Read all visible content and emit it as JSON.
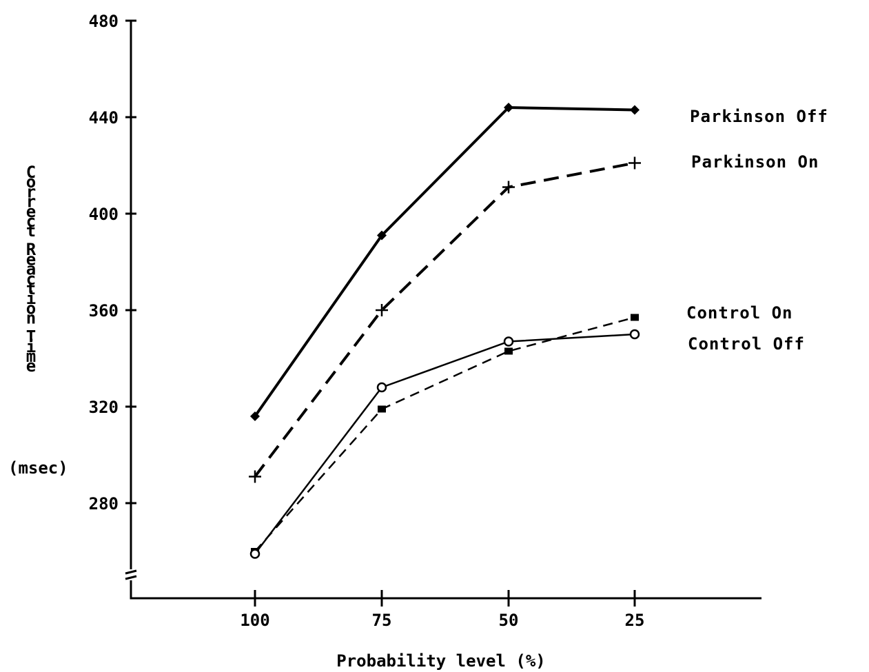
{
  "chart_data": {
    "type": "line",
    "title": "",
    "xlabel": "Probability level (%)",
    "ylabel": "Correct Reaction Time",
    "ylabel_unit": "(msec)",
    "categories": [
      "100",
      "75",
      "50",
      "25"
    ],
    "yticks": [
      "280",
      "320",
      "360",
      "400",
      "440",
      "480"
    ],
    "ylim": [
      240,
      480
    ],
    "axis_break": true,
    "grid": false,
    "legend_placement": "right, labels beside line ends",
    "series": [
      {
        "name": "Parkinson Off",
        "values": [
          316,
          391,
          444,
          443
        ],
        "line_style": "solid",
        "line_weight": "thick",
        "marker": "filled-diamond"
      },
      {
        "name": "Parkinson On",
        "values": [
          291,
          360,
          411,
          421
        ],
        "line_style": "dashed",
        "line_weight": "thick",
        "marker": "plus"
      },
      {
        "name": "Control On",
        "values": [
          260,
          319,
          343,
          357
        ],
        "line_style": "dashed",
        "line_weight": "thin",
        "marker": "filled-square"
      },
      {
        "name": "Control Off",
        "values": [
          259,
          328,
          347,
          350
        ],
        "line_style": "solid",
        "line_weight": "thin",
        "marker": "open-circle"
      }
    ],
    "colors": {
      "ink": "#000000",
      "background": "#ffffff"
    }
  }
}
